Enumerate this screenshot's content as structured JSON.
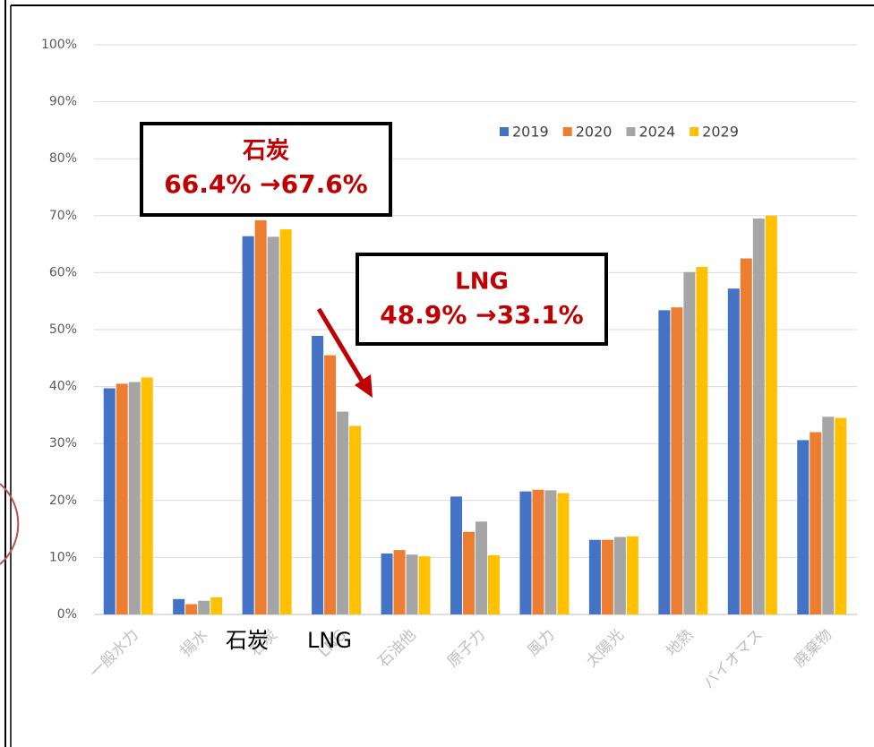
{
  "chart_data": {
    "type": "bar",
    "categories": [
      "一般水力",
      "揚水",
      "石炭",
      "LNG",
      "石油他",
      "原子力",
      "風力",
      "太陽光",
      "地熱",
      "バイオマス",
      "廃棄物"
    ],
    "series": [
      {
        "name": "2019",
        "color": "#4472c4",
        "values": [
          39.7,
          2.7,
          66.4,
          48.9,
          10.7,
          20.7,
          21.6,
          13.1,
          53.4,
          57.2,
          30.6
        ]
      },
      {
        "name": "2020",
        "color": "#ed7d31",
        "values": [
          40.5,
          1.8,
          69.2,
          45.5,
          11.3,
          14.5,
          21.9,
          13.1,
          53.9,
          62.5,
          32.0
        ]
      },
      {
        "name": "2024",
        "color": "#a5a5a5",
        "values": [
          40.8,
          2.4,
          66.3,
          35.6,
          10.5,
          16.3,
          21.8,
          13.6,
          60.1,
          69.5,
          34.7
        ]
      },
      {
        "name": "2029",
        "color": "#ffc000",
        "values": [
          41.6,
          3.0,
          67.6,
          33.1,
          10.2,
          10.4,
          21.3,
          13.7,
          61.0,
          70.0,
          34.5
        ]
      }
    ],
    "ylim": [
      0,
      100
    ],
    "yticks": [
      {
        "value": 0,
        "label": "0%"
      },
      {
        "value": 10,
        "label": "10%"
      },
      {
        "value": 20,
        "label": "20%"
      },
      {
        "value": 30,
        "label": "30%"
      },
      {
        "value": 40,
        "label": "40%"
      },
      {
        "value": 50,
        "label": "50%"
      },
      {
        "value": 60,
        "label": "60%"
      },
      {
        "value": 70,
        "label": "70%"
      },
      {
        "value": 80,
        "label": "80%"
      },
      {
        "value": 90,
        "label": "90%"
      },
      {
        "value": 100,
        "label": "100%"
      }
    ],
    "grid": true,
    "legend": "top-right",
    "annotations": [
      {
        "title": "石炭",
        "text": "66.4% →67.6%"
      },
      {
        "title": "LNG",
        "text": "48.9% →33.1%"
      }
    ],
    "overlay_labels": [
      "石炭",
      "LNG"
    ]
  }
}
